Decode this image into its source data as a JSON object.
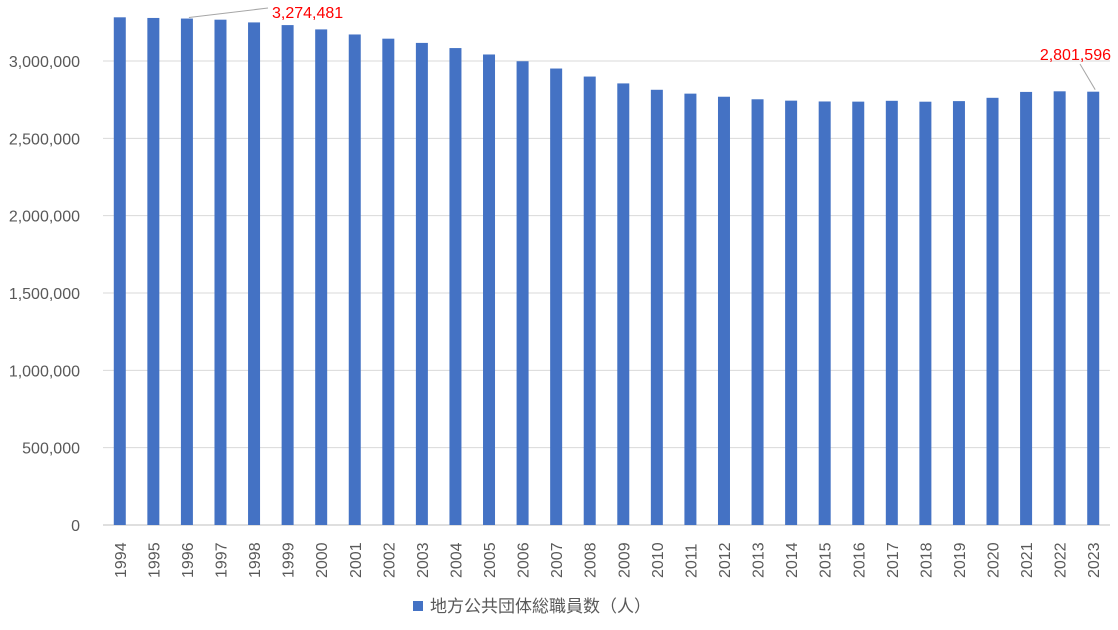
{
  "chart_data": {
    "type": "bar",
    "categories": [
      "1994",
      "1995",
      "1996",
      "1997",
      "1998",
      "1999",
      "2000",
      "2001",
      "2002",
      "2003",
      "2004",
      "2005",
      "2006",
      "2007",
      "2008",
      "2009",
      "2010",
      "2011",
      "2012",
      "2013",
      "2014",
      "2015",
      "2016",
      "2017",
      "2018",
      "2019",
      "2020",
      "2021",
      "2022",
      "2023"
    ],
    "series": [
      {
        "name": "地方公共団体総職員数（人）",
        "color": "#4472C4",
        "values": [
          3282492,
          3278332,
          3274481,
          3267118,
          3249494,
          3232158,
          3204297,
          3171532,
          3144323,
          3117004,
          3083597,
          3042122,
          2998402,
          2951296,
          2899378,
          2855106,
          2813875,
          2788989,
          2768913,
          2752484,
          2743654,
          2738337,
          2737263,
          2742596,
          2736860,
          2740653,
          2762020,
          2800097,
          2804024,
          2801596
        ]
      }
    ],
    "ylim": [
      0,
      3300000
    ],
    "yticks": [
      0,
      500000,
      1000000,
      1500000,
      2000000,
      2500000,
      3000000
    ],
    "ytick_labels": [
      "0",
      "500,000",
      "1,000,000",
      "1,500,000",
      "2,000,000",
      "2,500,000",
      "3,000,000"
    ],
    "grid": true,
    "legend_position": "bottom",
    "annotations": [
      {
        "category": "1996",
        "text": "3,274,481",
        "color": "#FF0000"
      },
      {
        "category": "2023",
        "text": "2,801,596",
        "color": "#FF0000"
      }
    ],
    "gridline_color": "#D9D9D9",
    "axis_color": "#BFBFBF"
  }
}
